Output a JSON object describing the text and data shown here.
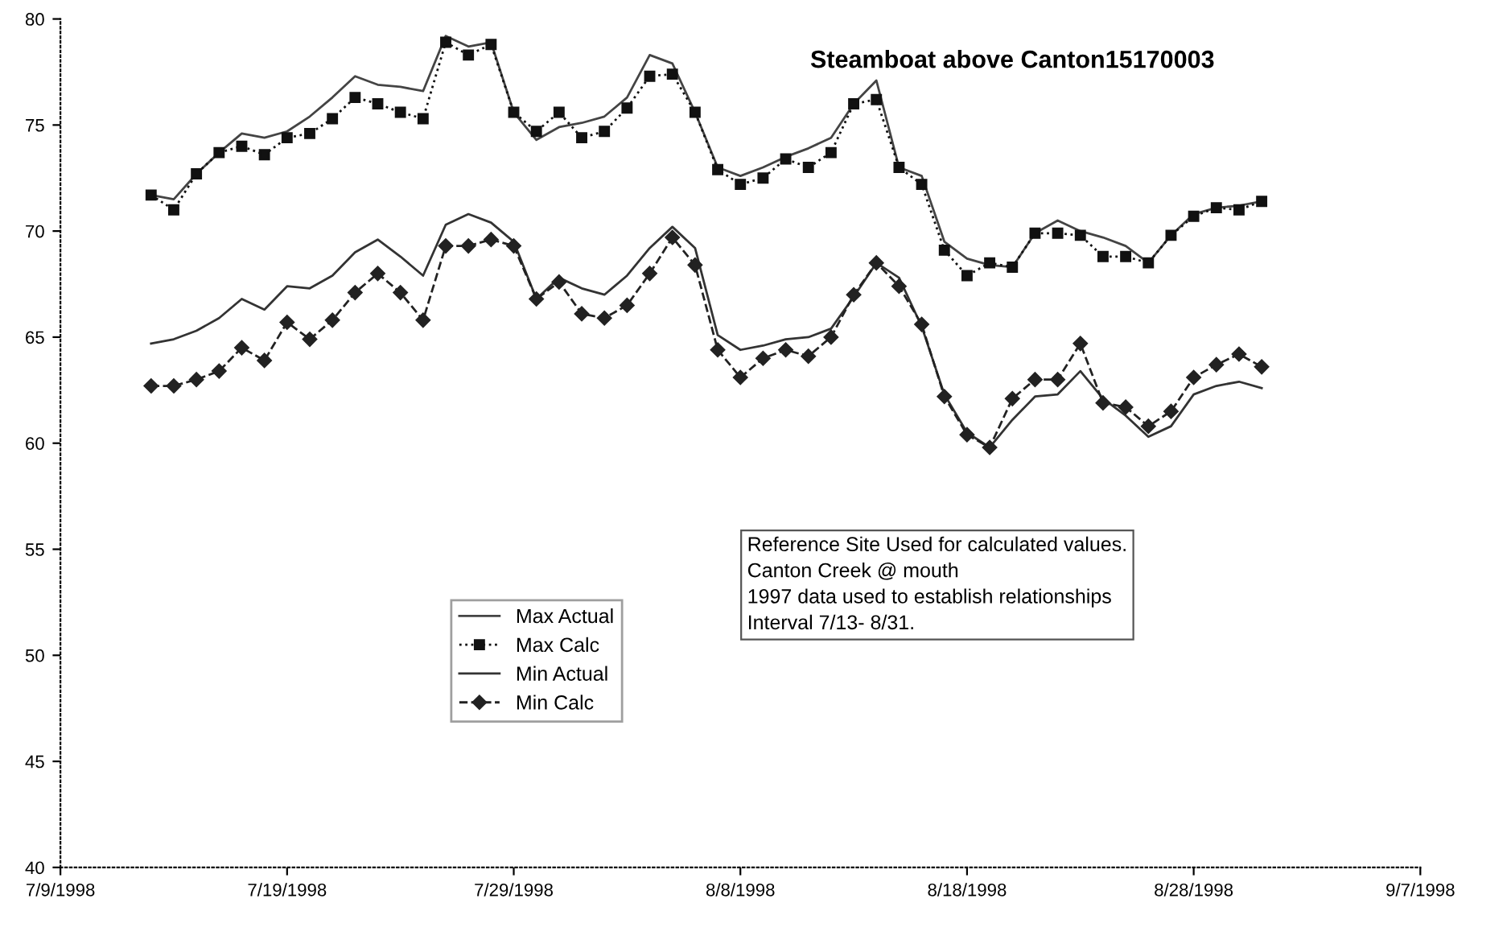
{
  "chart_data": {
    "type": "line",
    "title": "Steamboat above Canton15170003",
    "x": [
      "1998-07-13",
      "1998-07-14",
      "1998-07-15",
      "1998-07-16",
      "1998-07-17",
      "1998-07-18",
      "1998-07-19",
      "1998-07-20",
      "1998-07-21",
      "1998-07-22",
      "1998-07-23",
      "1998-07-24",
      "1998-07-25",
      "1998-07-26",
      "1998-07-27",
      "1998-07-28",
      "1998-07-29",
      "1998-07-30",
      "1998-07-31",
      "1998-08-01",
      "1998-08-02",
      "1998-08-03",
      "1998-08-04",
      "1998-08-05",
      "1998-08-06",
      "1998-08-07",
      "1998-08-08",
      "1998-08-09",
      "1998-08-10",
      "1998-08-11",
      "1998-08-12",
      "1998-08-13",
      "1998-08-14",
      "1998-08-15",
      "1998-08-16",
      "1998-08-17",
      "1998-08-18",
      "1998-08-19",
      "1998-08-20",
      "1998-08-21",
      "1998-08-22",
      "1998-08-23",
      "1998-08-24",
      "1998-08-25",
      "1998-08-26",
      "1998-08-27",
      "1998-08-28",
      "1998-08-29",
      "1998-08-30",
      "1998-08-31"
    ],
    "series": [
      {
        "name": "Max Actual",
        "color": "#444444",
        "line_style": "solid",
        "marker": "none",
        "values": [
          71.7,
          71.5,
          72.7,
          73.7,
          74.6,
          74.4,
          74.7,
          75.4,
          76.3,
          77.3,
          76.9,
          76.8,
          76.6,
          79.2,
          78.7,
          78.9,
          75.6,
          74.3,
          74.9,
          75.1,
          75.4,
          76.3,
          78.3,
          77.9,
          75.6,
          73.0,
          72.6,
          73.0,
          73.5,
          73.9,
          74.4,
          76.0,
          77.1,
          73.0,
          72.6,
          69.5,
          68.7,
          68.4,
          68.3,
          69.9,
          70.5,
          70.0,
          69.7,
          69.3,
          68.5,
          69.8,
          70.8,
          71.1,
          71.2,
          71.4
        ]
      },
      {
        "name": "Max Calc",
        "color": "#111111",
        "line_style": "dotted",
        "marker": "square",
        "values": [
          71.7,
          71.0,
          72.7,
          73.7,
          74.0,
          73.6,
          74.4,
          74.6,
          75.3,
          76.3,
          76.0,
          75.6,
          75.3,
          78.9,
          78.3,
          78.8,
          75.6,
          74.7,
          75.6,
          74.4,
          74.7,
          75.8,
          77.3,
          77.4,
          75.6,
          72.9,
          72.2,
          72.5,
          73.4,
          73.0,
          73.7,
          76.0,
          76.2,
          73.0,
          72.2,
          69.1,
          67.9,
          68.5,
          68.3,
          69.9,
          69.9,
          69.8,
          68.8,
          68.8,
          68.5,
          69.8,
          70.7,
          71.1,
          71.0,
          71.4
        ]
      },
      {
        "name": "Min Actual",
        "color": "#333333",
        "line_style": "solid",
        "marker": "none",
        "values": [
          64.7,
          64.9,
          65.3,
          65.9,
          66.8,
          66.3,
          67.4,
          67.3,
          67.9,
          69.0,
          69.6,
          68.8,
          67.9,
          70.3,
          70.8,
          70.4,
          69.5,
          66.8,
          67.8,
          67.3,
          67.0,
          67.9,
          69.2,
          70.2,
          69.2,
          65.1,
          64.4,
          64.6,
          64.9,
          65.0,
          65.4,
          66.9,
          68.5,
          67.8,
          65.5,
          62.3,
          60.5,
          59.8,
          61.1,
          62.2,
          62.3,
          63.4,
          62.1,
          61.3,
          60.3,
          60.8,
          62.3,
          62.7,
          62.9,
          62.6
        ]
      },
      {
        "name": "Min Calc",
        "color": "#222222",
        "line_style": "dashed",
        "marker": "diamond",
        "values": [
          62.7,
          62.7,
          63.0,
          63.4,
          64.5,
          63.9,
          65.7,
          64.9,
          65.8,
          67.1,
          68.0,
          67.1,
          65.8,
          69.3,
          69.3,
          69.6,
          69.3,
          66.8,
          67.6,
          66.1,
          65.9,
          66.5,
          68.0,
          69.7,
          68.4,
          64.4,
          63.1,
          64.0,
          64.4,
          64.1,
          65.0,
          67.0,
          68.5,
          67.4,
          65.6,
          62.2,
          60.4,
          59.8,
          62.1,
          63.0,
          63.0,
          64.7,
          61.9,
          61.7,
          60.8,
          61.5,
          63.1,
          63.7,
          64.2,
          63.6
        ]
      }
    ],
    "xlim": [
      "1998-07-09",
      "1998-09-07"
    ],
    "xticks": [
      {
        "value": "1998-07-09",
        "label": "7/9/1998"
      },
      {
        "value": "1998-07-19",
        "label": "7/19/1998"
      },
      {
        "value": "1998-07-29",
        "label": "7/29/1998"
      },
      {
        "value": "1998-08-08",
        "label": "8/8/1998"
      },
      {
        "value": "1998-08-18",
        "label": "8/18/1998"
      },
      {
        "value": "1998-08-28",
        "label": "8/28/1998"
      },
      {
        "value": "1998-09-07",
        "label": "9/7/1998"
      }
    ],
    "ylim": [
      40,
      80
    ],
    "yticks": [
      40,
      45,
      50,
      55,
      60,
      65,
      70,
      75,
      80
    ],
    "grid": false,
    "legend": "bottom left",
    "annotations": [
      "Reference Site Used for calculated values.\nCanton Creek @ mouth\n1997 data used to establish relationships\nInterval 7/13- 8/31."
    ]
  }
}
